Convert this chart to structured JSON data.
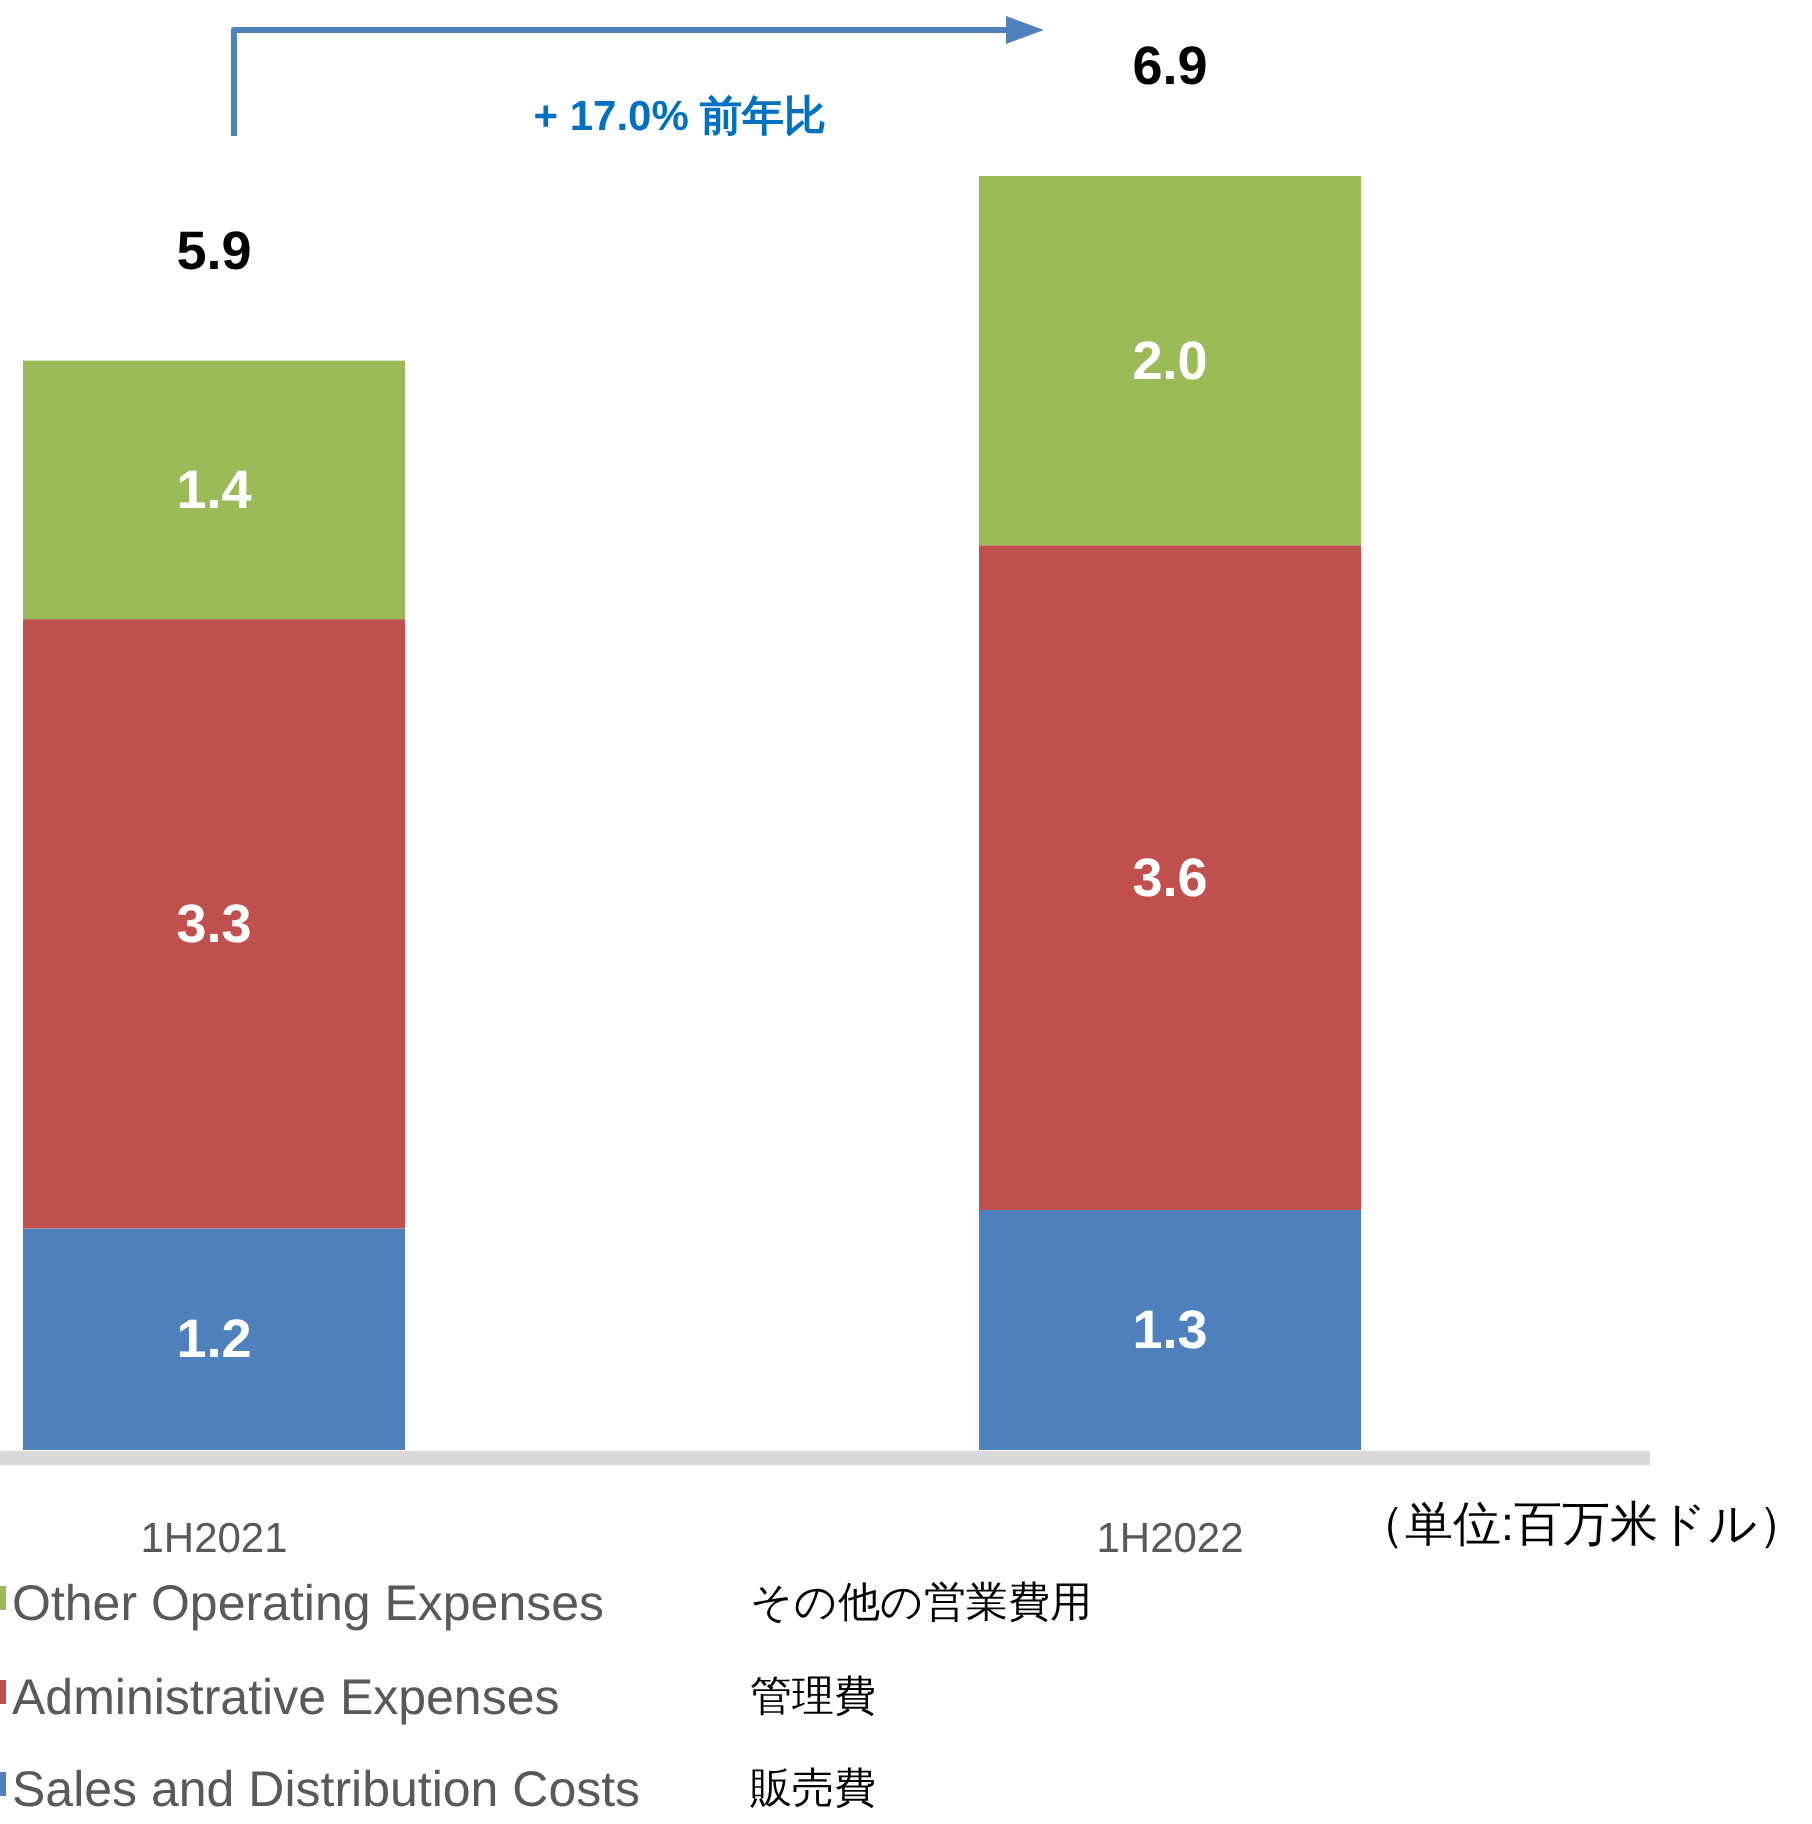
{
  "chart_data": {
    "type": "bar",
    "stacked": true,
    "categories": [
      "1H2021",
      "1H2022"
    ],
    "series": [
      {
        "name": "Sales and Distribution Costs",
        "color": "#4f81bd",
        "values": [
          1.2,
          1.3
        ],
        "value_labels": [
          "1.2",
          "1.3"
        ]
      },
      {
        "name": "Administrative Expenses",
        "color": "#c0504d",
        "values": [
          3.3,
          3.6
        ],
        "value_labels": [
          "3.3",
          "3.6"
        ]
      },
      {
        "name": "Other Operating Expenses",
        "color": "#9bbb59",
        "values": [
          1.4,
          2.0
        ],
        "value_labels": [
          "1.4",
          "2.0"
        ]
      }
    ],
    "totals": [
      "5.9",
      "6.9"
    ],
    "legend": "bottom",
    "annotations": [
      "+ 17.0% 前年比",
      "（単位:百万米ドル）",
      "販売費",
      "管理費",
      "その他の営業費用"
    ]
  }
}
